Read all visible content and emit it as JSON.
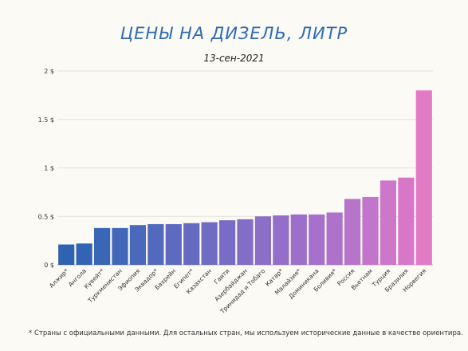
{
  "title": "ЦЕНЫ НА ДИЗЕЛЬ, ЛИТР",
  "subtitle": "13-сен-2021",
  "footnote": "* Страны с официальными данными. Для остальных стран, мы используем исторические данные в качестве ориентира.",
  "chart_data": {
    "type": "bar",
    "title": "ЦЕНЫ НА ДИЗЕЛЬ, ЛИТР",
    "subtitle": "13-сен-2021",
    "xlabel": "",
    "ylabel": "",
    "ylim": [
      0,
      2
    ],
    "yticks": [
      "0 $",
      "0.5 $",
      "1 $",
      "1.5 $",
      "2 $"
    ],
    "grid": true,
    "categories": [
      "Алжир*",
      "Ангола",
      "Кувейт*",
      "Туркменистан",
      "Эфиопия",
      "Эквадор*",
      "Бахрейн",
      "Египет*",
      "Казахстан",
      "Гаити",
      "Азербайджан",
      "Тринидад и Тобаго",
      "Катар*",
      "Малайзия*",
      "Доминикана",
      "Боливия*",
      "Россия",
      "Вьетнам",
      "Турция",
      "Бразилия",
      "Норвегия"
    ],
    "values": [
      0.21,
      0.22,
      0.38,
      0.38,
      0.41,
      0.42,
      0.42,
      0.43,
      0.44,
      0.46,
      0.47,
      0.5,
      0.51,
      0.52,
      0.52,
      0.54,
      0.68,
      0.7,
      0.87,
      0.9,
      1.8
    ],
    "colors": [
      "#2f62b0",
      "#3364b3",
      "#3a66b6",
      "#4367b8",
      "#4b69ba",
      "#5369bd",
      "#5d6ac0",
      "#666bc2",
      "#6f6cc4",
      "#786cc6",
      "#826dc7",
      "#8b6ec8",
      "#946fc9",
      "#9c70ca",
      "#a571ca",
      "#ae72cb",
      "#b874cb",
      "#c275ca",
      "#cc77c9",
      "#d678c7",
      "#e27bc5"
    ]
  }
}
